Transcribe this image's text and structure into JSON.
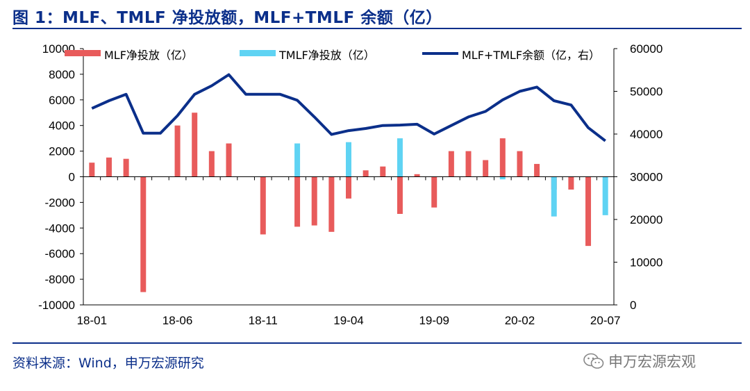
{
  "title": "图 1：MLF、TMLF 净投放额，MLF+TMLF 余额（亿）",
  "source": "资料来源：Wind，申万宏源研究",
  "watermark": "申万宏源宏观",
  "colors": {
    "title": "#0b2f8a",
    "mlf_bar": "#e85b5b",
    "tmlf_bar": "#5fd3f3",
    "balance_line": "#0b2f8a"
  },
  "chart_data": {
    "type": "bar+line",
    "x": [
      "18-01",
      "18-02",
      "18-03",
      "18-04",
      "18-05",
      "18-06",
      "18-07",
      "18-08",
      "18-09",
      "18-10",
      "18-11",
      "18-12",
      "19-01",
      "19-02",
      "19-03",
      "19-04",
      "19-05",
      "19-06",
      "19-07",
      "19-08",
      "19-09",
      "19-10",
      "19-11",
      "19-12",
      "20-01",
      "20-02",
      "20-03",
      "20-04",
      "20-05",
      "20-06",
      "20-07"
    ],
    "x_tick_labels": [
      "18-01",
      "18-06",
      "18-11",
      "19-04",
      "19-09",
      "20-02",
      "20-07"
    ],
    "y_left": {
      "ylim": [
        -10000,
        10000
      ],
      "ticks": [
        -10000,
        -8000,
        -6000,
        -4000,
        -2000,
        0,
        2000,
        4000,
        6000,
        8000,
        10000
      ]
    },
    "y_right": {
      "ylim": [
        0,
        60000
      ],
      "ticks": [
        0,
        10000,
        20000,
        30000,
        40000,
        50000,
        60000
      ]
    },
    "series": [
      {
        "name": "MLF净投放（亿）",
        "type": "bar",
        "axis": "left",
        "values": [
          1100,
          1500,
          1400,
          -9000,
          0,
          4000,
          5000,
          2000,
          2600,
          0,
          -4500,
          0,
          -3900,
          -3800,
          -4300,
          -1700,
          500,
          800,
          -2900,
          200,
          -2400,
          2000,
          2000,
          1300,
          3000,
          2000,
          1000,
          -1000,
          -1000,
          -5400,
          0
        ]
      },
      {
        "name": "TMLF净投放（亿）",
        "type": "bar",
        "axis": "left",
        "values": [
          0,
          0,
          0,
          0,
          0,
          0,
          0,
          0,
          0,
          0,
          0,
          0,
          2600,
          0,
          0,
          2700,
          0,
          0,
          3000,
          0,
          0,
          0,
          0,
          0,
          -200,
          0,
          0,
          -3100,
          0,
          0,
          -3000
        ]
      },
      {
        "name": "MLF+TMLF余额（亿，右）",
        "type": "line",
        "axis": "right",
        "values": [
          46000,
          47800,
          49300,
          40200,
          40200,
          44300,
          49300,
          51300,
          53900,
          49300,
          49300,
          49300,
          47900,
          44000,
          39900,
          40800,
          41300,
          42000,
          42100,
          42300,
          40000,
          42000,
          44000,
          45300,
          48000,
          50000,
          51000,
          47800,
          46800,
          41500,
          38400
        ]
      }
    ]
  }
}
